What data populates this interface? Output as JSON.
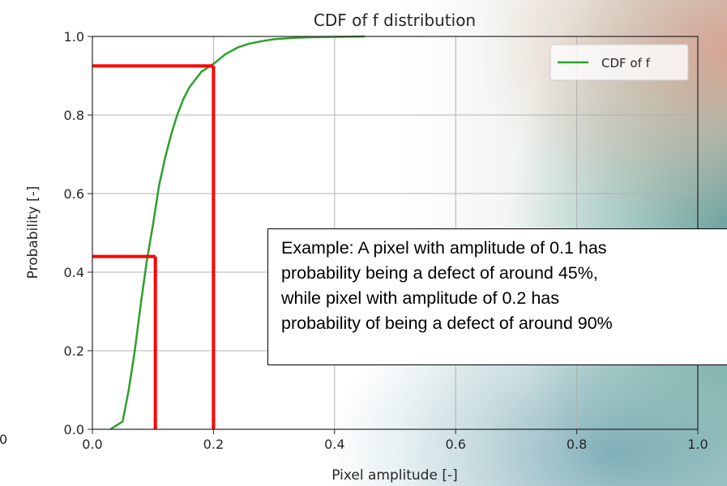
{
  "chart_data": {
    "type": "line",
    "title": "CDF of f distribution",
    "xlabel": "Pixel amplitude [-]",
    "ylabel": "Probability [-]",
    "xlim": [
      0.0,
      1.0
    ],
    "ylim": [
      0.0,
      1.0
    ],
    "xticks": [
      "0.0",
      "0.2",
      "0.4",
      "0.6",
      "0.8",
      "1.0"
    ],
    "yticks": [
      "0.0",
      "0.2",
      "0.4",
      "0.6",
      "0.8",
      "1.0"
    ],
    "partial_left_tick": "0",
    "grid": true,
    "legend_position": "top-right",
    "series": [
      {
        "name": "CDF of f",
        "color": "#2ca02c",
        "x": [
          0.03,
          0.04,
          0.05,
          0.06,
          0.07,
          0.08,
          0.09,
          0.1,
          0.11,
          0.12,
          0.13,
          0.14,
          0.15,
          0.16,
          0.17,
          0.18,
          0.19,
          0.2,
          0.22,
          0.24,
          0.26,
          0.28,
          0.3,
          0.33,
          0.36,
          0.4,
          0.45
        ],
        "y": [
          0.0,
          0.01,
          0.02,
          0.1,
          0.2,
          0.32,
          0.43,
          0.52,
          0.62,
          0.69,
          0.75,
          0.8,
          0.84,
          0.87,
          0.89,
          0.91,
          0.92,
          0.93,
          0.955,
          0.972,
          0.982,
          0.988,
          0.993,
          0.996,
          0.998,
          0.999,
          1.0
        ]
      }
    ],
    "annotations": {
      "marker_color": "#ff0000",
      "markers": [
        {
          "x": 0.104,
          "y": 0.44
        },
        {
          "x": 0.2,
          "y": 0.925
        }
      ]
    }
  },
  "annotation_box": {
    "lines": [
      "Example: A pixel with amplitude of 0.1 has",
      "probability being a defect of around 45%,",
      "while pixel with amplitude of 0.2 has",
      "probability of being a defect of around 90%"
    ]
  }
}
